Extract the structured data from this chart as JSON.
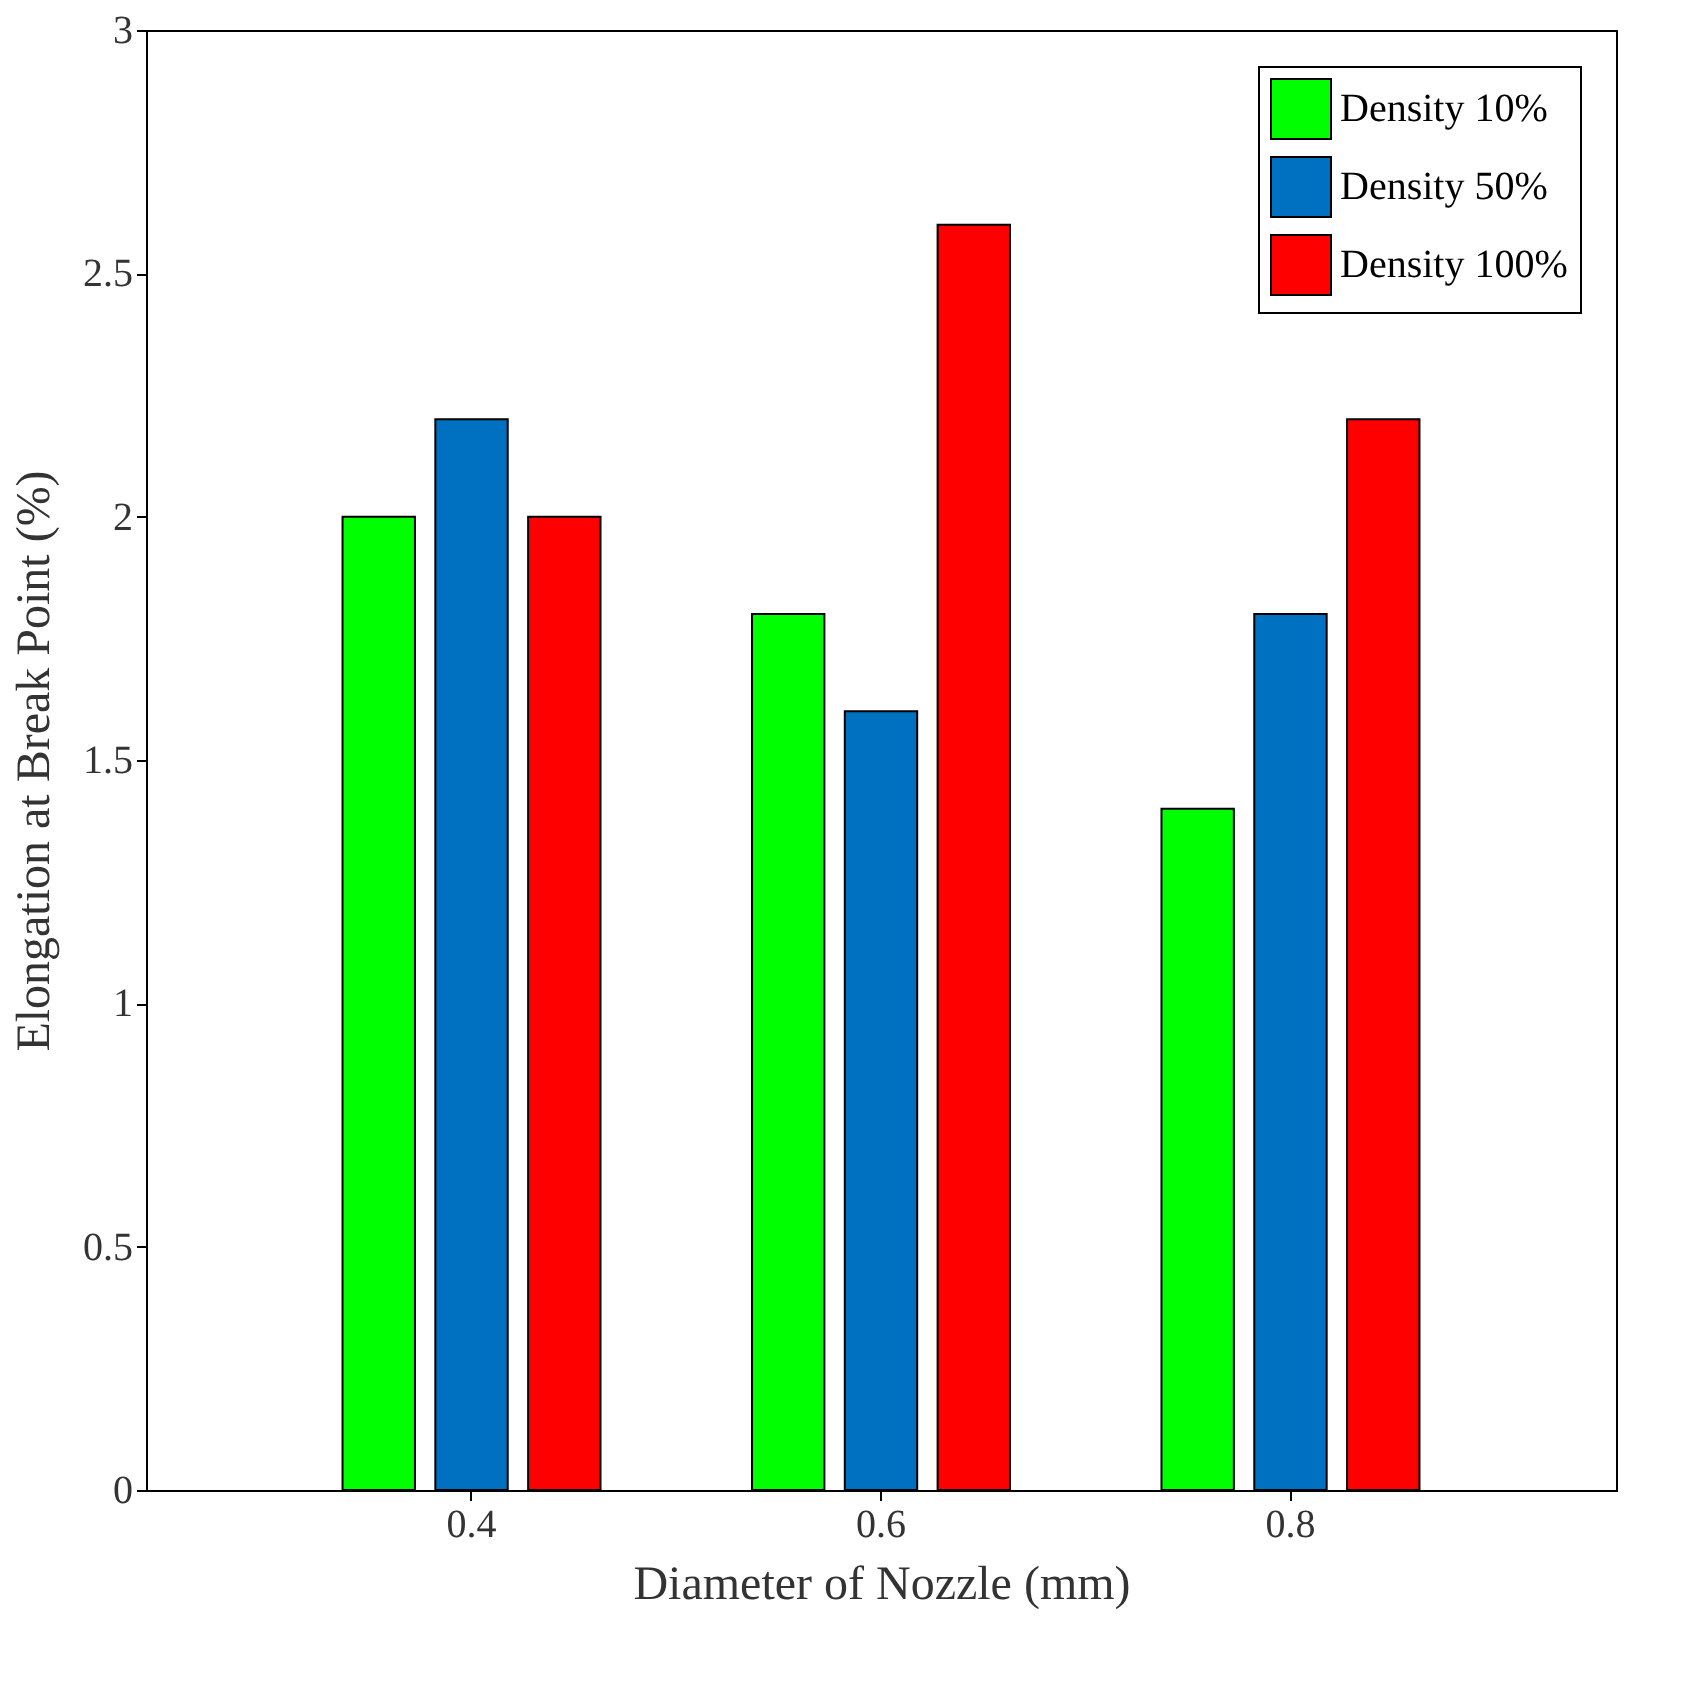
{
  "chart_data": {
    "type": "bar",
    "xlabel": "Diameter of Nozzle (mm)",
    "ylabel": "Elongation at Break Point (%)",
    "categories": [
      "0.4",
      "0.6",
      "0.8"
    ],
    "series": [
      {
        "name": "Density 10%",
        "color": "#00ff00",
        "values": [
          2.0,
          1.8,
          1.4
        ]
      },
      {
        "name": "Density 50%",
        "color": "#0070c0",
        "values": [
          2.2,
          1.6,
          1.8
        ]
      },
      {
        "name": "Density 100%",
        "color": "#ff0000",
        "values": [
          2.0,
          2.6,
          2.2
        ]
      }
    ],
    "ylim": [
      0,
      3
    ],
    "yticks": [
      0,
      0.5,
      1,
      1.5,
      2,
      2.5,
      3
    ],
    "grid": false,
    "legend": "top right"
  }
}
